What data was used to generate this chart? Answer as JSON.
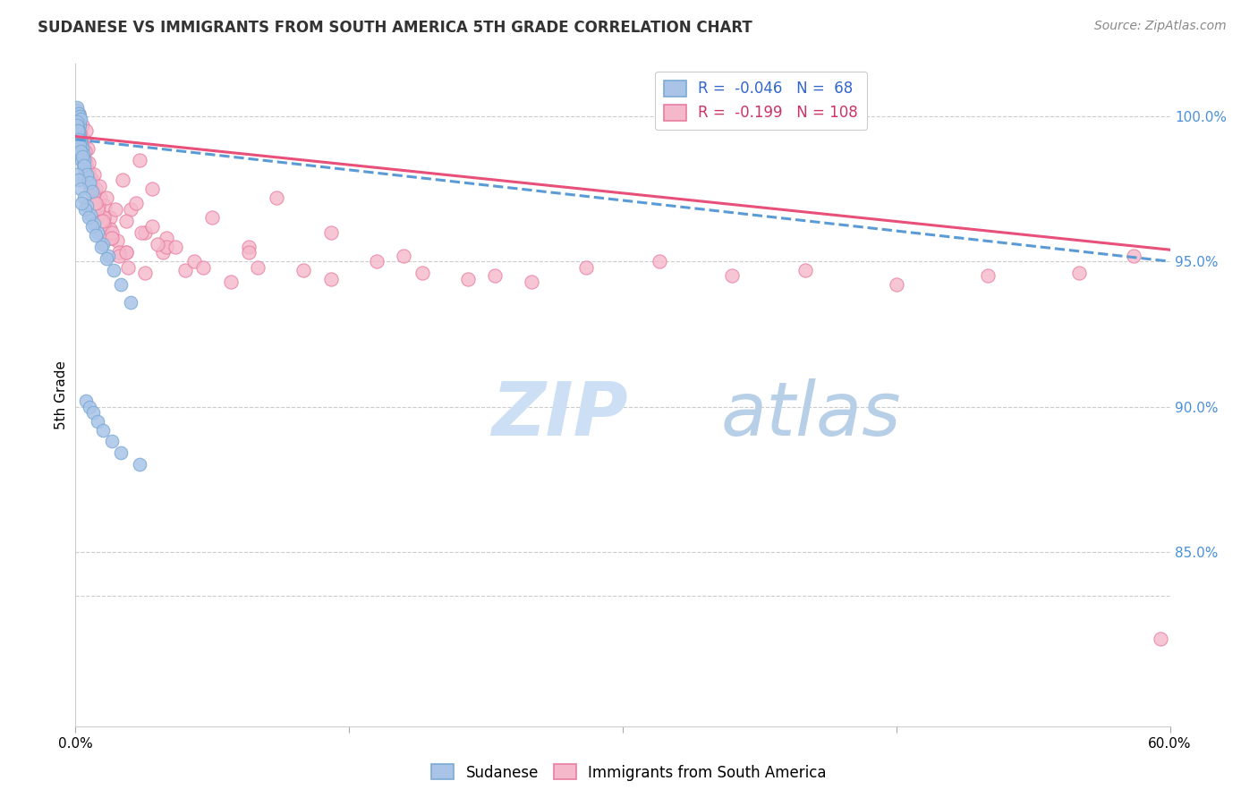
{
  "title": "SUDANESE VS IMMIGRANTS FROM SOUTH AMERICA 5TH GRADE CORRELATION CHART",
  "source": "Source: ZipAtlas.com",
  "ylabel": "5th Grade",
  "yticks": [
    85.0,
    90.0,
    95.0,
    100.0
  ],
  "xmin": 0.0,
  "xmax": 60.0,
  "ymin": 79.0,
  "ymax": 101.8,
  "blue_R": -0.046,
  "blue_N": 68,
  "pink_R": -0.199,
  "pink_N": 108,
  "blue_color": "#aac4e8",
  "pink_color": "#f5b8cb",
  "blue_edge": "#7aaad4",
  "pink_edge": "#e87da0",
  "trend_blue_color": "#5b9bd5",
  "trend_pink_color": "#e8507a",
  "watermark_zip_color": "#cde0f5",
  "watermark_atlas_color": "#c8d8f0",
  "blue_scatter_x": [
    0.05,
    0.08,
    0.1,
    0.12,
    0.15,
    0.18,
    0.2,
    0.22,
    0.25,
    0.28,
    0.1,
    0.13,
    0.16,
    0.2,
    0.24,
    0.28,
    0.32,
    0.36,
    0.4,
    0.45,
    0.1,
    0.15,
    0.2,
    0.25,
    0.3,
    0.35,
    0.4,
    0.5,
    0.6,
    0.7,
    0.08,
    0.12,
    0.18,
    0.22,
    0.3,
    0.38,
    0.48,
    0.6,
    0.75,
    0.9,
    0.1,
    0.2,
    0.3,
    0.45,
    0.6,
    0.8,
    1.0,
    1.2,
    1.5,
    1.8,
    0.5,
    0.7,
    0.9,
    1.1,
    1.4,
    1.7,
    2.1,
    2.5,
    3.0,
    0.35,
    0.55,
    0.75,
    0.95,
    1.2,
    1.5,
    2.0,
    2.5,
    3.5
  ],
  "blue_scatter_y": [
    100.2,
    100.1,
    100.3,
    100.0,
    99.9,
    100.1,
    99.8,
    100.0,
    99.7,
    99.9,
    99.8,
    99.6,
    99.5,
    99.4,
    99.3,
    99.2,
    99.0,
    98.9,
    98.7,
    98.5,
    99.5,
    99.3,
    99.1,
    98.9,
    98.7,
    98.5,
    98.3,
    98.1,
    97.9,
    97.7,
    99.7,
    99.5,
    99.2,
    99.0,
    98.8,
    98.6,
    98.3,
    98.0,
    97.7,
    97.4,
    98.0,
    97.8,
    97.5,
    97.2,
    96.9,
    96.6,
    96.3,
    96.0,
    95.6,
    95.2,
    96.8,
    96.5,
    96.2,
    95.9,
    95.5,
    95.1,
    94.7,
    94.2,
    93.6,
    97.0,
    90.2,
    90.0,
    89.8,
    89.5,
    89.2,
    88.8,
    88.4,
    88.0
  ],
  "pink_scatter_x": [
    0.05,
    0.1,
    0.15,
    0.2,
    0.25,
    0.3,
    0.38,
    0.45,
    0.55,
    0.65,
    0.12,
    0.18,
    0.25,
    0.32,
    0.42,
    0.52,
    0.62,
    0.75,
    0.9,
    1.05,
    0.2,
    0.3,
    0.4,
    0.55,
    0.7,
    0.9,
    1.1,
    1.35,
    1.6,
    1.9,
    0.25,
    0.4,
    0.6,
    0.8,
    1.0,
    1.25,
    1.55,
    1.9,
    2.3,
    2.8,
    0.5,
    0.7,
    0.95,
    1.2,
    1.55,
    1.95,
    2.4,
    2.9,
    3.5,
    4.2,
    1.0,
    1.4,
    1.85,
    2.4,
    3.0,
    3.8,
    4.8,
    6.0,
    7.5,
    9.5,
    2.0,
    2.8,
    3.8,
    5.0,
    6.5,
    8.5,
    11.0,
    14.0,
    18.0,
    23.0,
    5.0,
    7.0,
    9.5,
    12.5,
    16.5,
    21.5,
    28.0,
    36.0,
    45.0,
    55.0,
    10.0,
    14.0,
    19.0,
    25.0,
    32.0,
    40.0,
    50.0,
    58.0,
    0.3,
    0.5,
    0.7,
    1.0,
    1.3,
    1.7,
    2.2,
    2.8,
    3.6,
    4.5,
    0.8,
    1.1,
    1.5,
    2.0,
    2.6,
    3.3,
    4.2,
    5.5
  ],
  "pink_scatter_y": [
    100.2,
    100.0,
    99.8,
    100.1,
    99.6,
    99.4,
    99.7,
    99.2,
    99.5,
    98.9,
    100.0,
    99.7,
    99.4,
    99.1,
    98.8,
    98.5,
    98.2,
    97.9,
    97.6,
    97.3,
    99.3,
    99.0,
    98.7,
    98.4,
    98.1,
    97.8,
    97.5,
    97.2,
    96.9,
    96.5,
    98.9,
    98.5,
    98.1,
    97.7,
    97.3,
    96.9,
    96.5,
    96.1,
    95.7,
    95.3,
    98.2,
    97.8,
    97.3,
    96.8,
    96.3,
    95.8,
    95.3,
    94.8,
    98.5,
    97.5,
    97.0,
    96.4,
    95.8,
    95.2,
    96.8,
    96.0,
    95.3,
    94.7,
    96.5,
    95.5,
    96.0,
    95.3,
    94.6,
    95.8,
    95.0,
    94.3,
    97.2,
    96.0,
    95.2,
    94.5,
    95.5,
    94.8,
    95.3,
    94.7,
    95.0,
    94.4,
    94.8,
    94.5,
    94.2,
    94.6,
    94.8,
    94.4,
    94.6,
    94.3,
    95.0,
    94.7,
    94.5,
    95.2,
    99.2,
    98.8,
    98.4,
    98.0,
    97.6,
    97.2,
    96.8,
    96.4,
    96.0,
    95.6,
    97.5,
    97.0,
    96.4,
    95.8,
    97.8,
    97.0,
    96.2,
    95.5
  ],
  "pink_outlier_x": [
    59.5
  ],
  "pink_outlier_y": [
    82.0
  ]
}
